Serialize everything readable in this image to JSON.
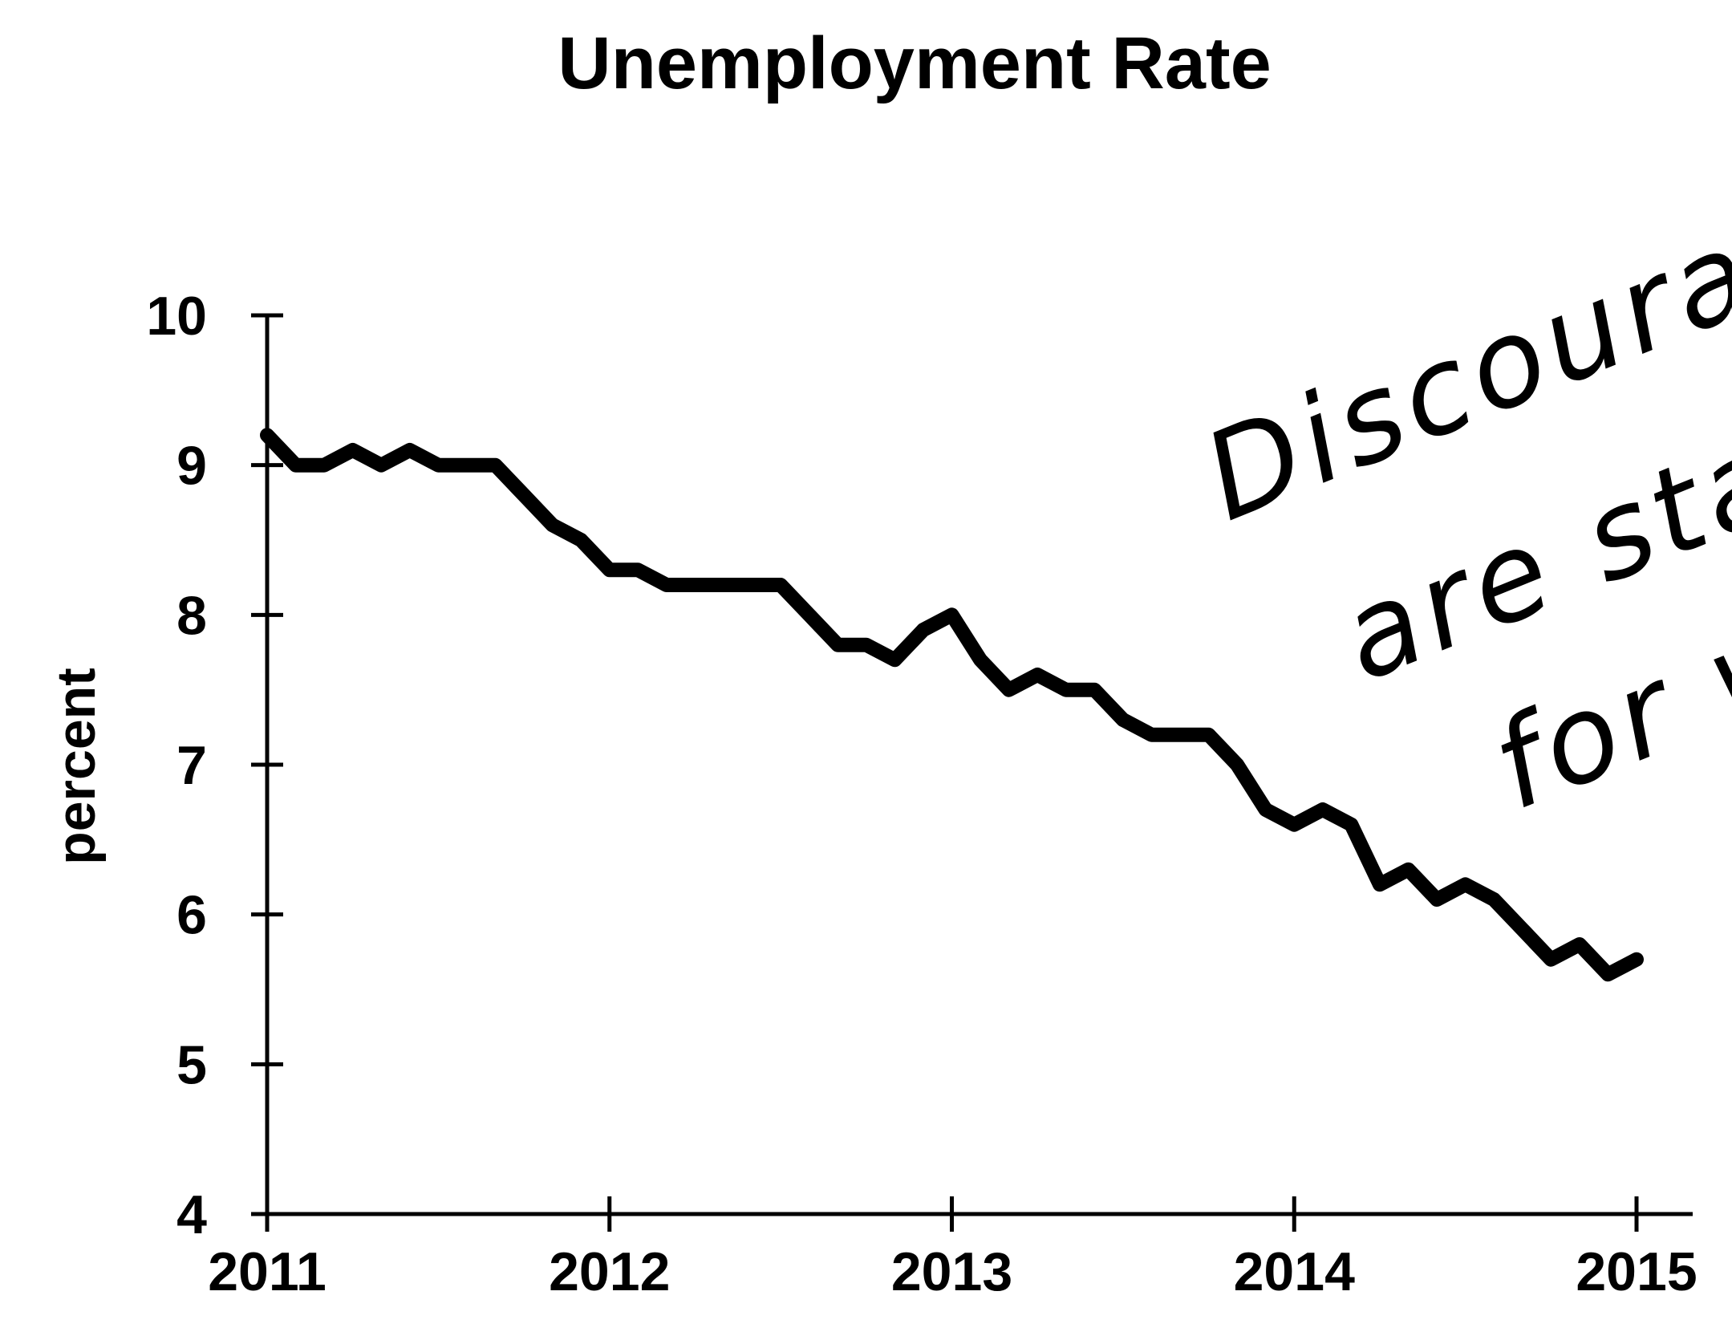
{
  "chart_data": {
    "type": "line",
    "title": "Unemployment Rate",
    "xlabel": "",
    "ylabel": "percent",
    "xlim": [
      2011,
      2015
    ],
    "ylim": [
      4,
      10
    ],
    "x_ticks": [
      "2011",
      "2012",
      "2013",
      "2014",
      "2015"
    ],
    "y_ticks": [
      "4",
      "5",
      "6",
      "7",
      "8",
      "9",
      "10"
    ],
    "grid": false,
    "legend": "none",
    "series": [
      {
        "color": "#000000",
        "x": [
          "2011-01",
          "2011-02",
          "2011-03",
          "2011-04",
          "2011-05",
          "2011-06",
          "2011-07",
          "2011-08",
          "2011-09",
          "2011-10",
          "2011-11",
          "2011-12",
          "2012-01",
          "2012-02",
          "2012-03",
          "2012-04",
          "2012-05",
          "2012-06",
          "2012-07",
          "2012-08",
          "2012-09",
          "2012-10",
          "2012-11",
          "2012-12",
          "2013-01",
          "2013-02",
          "2013-03",
          "2013-04",
          "2013-05",
          "2013-06",
          "2013-07",
          "2013-08",
          "2013-09",
          "2013-10",
          "2013-11",
          "2013-12",
          "2014-01",
          "2014-02",
          "2014-03",
          "2014-04",
          "2014-05",
          "2014-06",
          "2014-07",
          "2014-08",
          "2014-09",
          "2014-10",
          "2014-11",
          "2014-12",
          "2015-01"
        ],
        "values": [
          9.2,
          9.0,
          9.0,
          9.1,
          9.0,
          9.1,
          9.0,
          9.0,
          9.0,
          8.8,
          8.6,
          8.5,
          8.3,
          8.3,
          8.2,
          8.2,
          8.2,
          8.2,
          8.2,
          8.0,
          7.8,
          7.8,
          7.7,
          7.9,
          8.0,
          7.7,
          7.5,
          7.6,
          7.5,
          7.5,
          7.3,
          7.2,
          7.2,
          7.2,
          7.0,
          6.7,
          6.6,
          6.7,
          6.6,
          6.2,
          6.3,
          6.1,
          6.2,
          6.1,
          5.9,
          5.7,
          5.8,
          5.6,
          5.7
        ]
      }
    ],
    "annotation": {
      "lines": [
        "Discourage",
        "are sta",
        "for w"
      ]
    }
  }
}
